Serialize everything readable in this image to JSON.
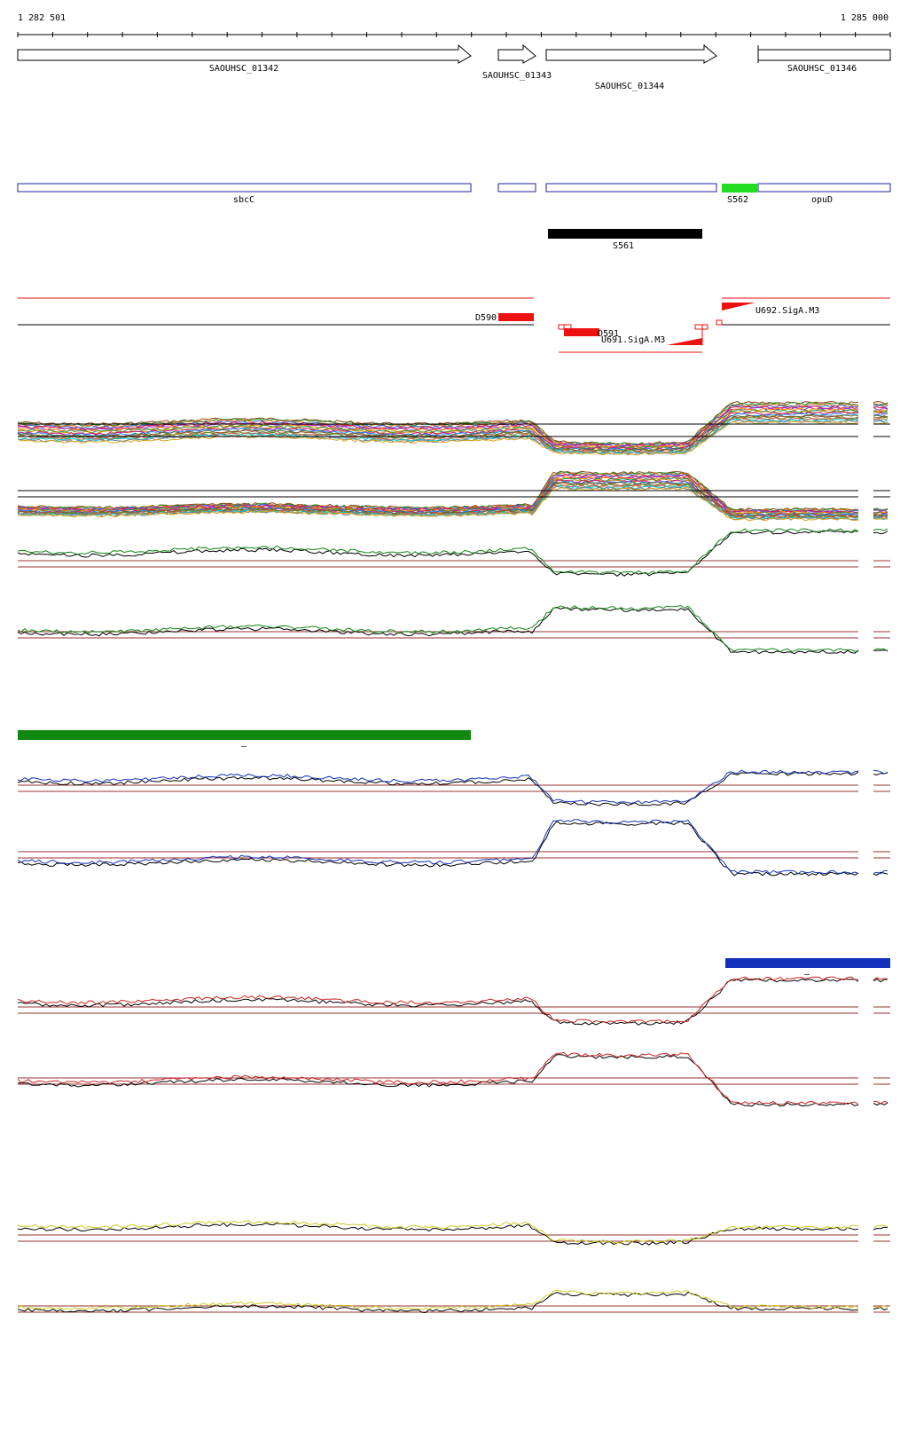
{
  "ruler": {
    "start_label": "1 282 501",
    "end_label": "1 285 000"
  },
  "genes": [
    {
      "id": "g1",
      "label": "SAOUHSC_01342",
      "strand": "+"
    },
    {
      "id": "g2",
      "label": "SAOUHSC_01343",
      "strand": "+"
    },
    {
      "id": "g3",
      "label": "SAOUHSC_01344",
      "strand": "+"
    },
    {
      "id": "g4",
      "label": "SAOUHSC_01346",
      "strand": "+"
    }
  ],
  "annotations": {
    "sbcC": "sbcC",
    "S562": "S562",
    "opuD": "opuD",
    "S561": "S561"
  },
  "features": {
    "D590": "D590",
    "D591": "D591",
    "U691": "U691.SigA.M3",
    "U692": "U692.SigA.M3"
  },
  "small_marks": [
    "–",
    "–"
  ],
  "colors": {
    "gene_outline": "#000000",
    "annotation_outline": "#2222aa",
    "S562": "#22dd22",
    "S561": "#000000",
    "feature_red": "#ee1111",
    "track_green": "#118811",
    "track_blue": "#1133bb",
    "track_red": "#cc2222",
    "track_yellow": "#cccc22",
    "baseline": "#993333"
  }
}
